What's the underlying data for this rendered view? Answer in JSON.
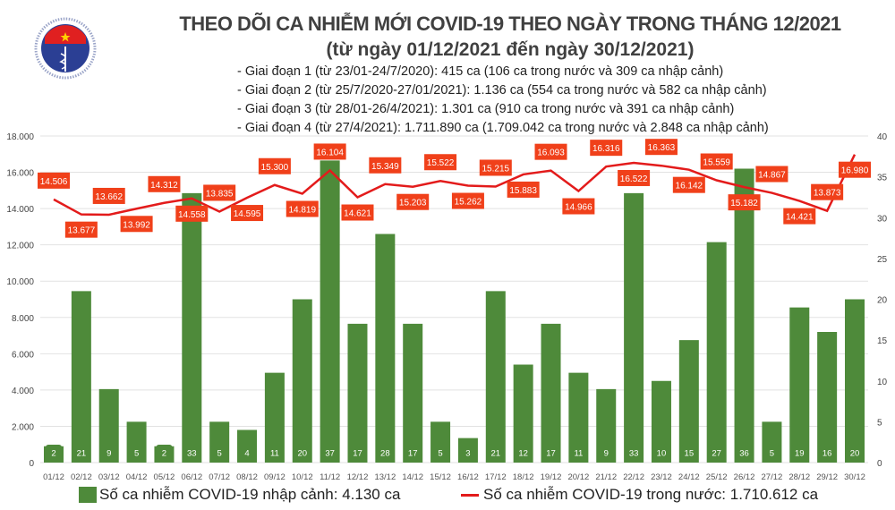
{
  "header": {
    "logo_text": "BỘ Y TẾ MINISTRY OF HEALTH",
    "title": "THEO DÕI CA NHIỄM MỚI COVID-19 THEO NGÀY TRONG THÁNG 12/2021",
    "subtitle": "(từ ngày 01/12/2021 đến ngày 30/12/2021)",
    "phases": [
      "- Giai đoạn 1 (từ 23/01-24/7/2020): 415 ca (106 ca trong nước và 309 ca nhập cảnh)",
      "- Giai đoạn 2 (từ 25/7/2020-27/01/2021): 1.136 ca (554 ca trong nước và 582 ca nhập cảnh)",
      "- Giai đoạn 3 (từ 28/01-26/4/2021): 1.301 ca (910 ca trong nước và 391 ca nhập cảnh)",
      "- Giai đoạn 4 (từ 27/4/2021): 1.711.890 ca (1.709.042 ca trong nước và 2.848 ca nhập cảnh)"
    ]
  },
  "chart_data": {
    "type": "bar+line",
    "categories": [
      "01/12",
      "02/12",
      "03/12",
      "04/12",
      "05/12",
      "06/12",
      "07/12",
      "08/12",
      "09/12",
      "10/12",
      "11/12",
      "12/12",
      "13/12",
      "14/12",
      "15/12",
      "16/12",
      "17/12",
      "18/12",
      "19/12",
      "20/12",
      "21/12",
      "22/12",
      "23/12",
      "24/12",
      "25/12",
      "26/12",
      "27/12",
      "28/12",
      "29/12",
      "30/12"
    ],
    "series": [
      {
        "name": "Số ca nhiễm COVID-19 nhập cảnh: 4.130 ca",
        "type": "bar",
        "axis": "right",
        "color": "#4e8a3a",
        "values": [
          2,
          21,
          9,
          5,
          2,
          33,
          5,
          4,
          11,
          20,
          37,
          17,
          28,
          17,
          5,
          3,
          21,
          12,
          17,
          11,
          9,
          33,
          10,
          15,
          27,
          36,
          5,
          19,
          16,
          20
        ]
      },
      {
        "name": "Số ca nhiễm COVID-19 trong nước: 1.710.612 ca",
        "type": "line",
        "axis": "left",
        "color": "#e31b1b",
        "label_color": "#f0401a",
        "values": [
          14506,
          13677,
          13662,
          13992,
          14312,
          14558,
          13835,
          14595,
          15300,
          14819,
          16104,
          14621,
          15349,
          15203,
          15522,
          15262,
          15215,
          15883,
          16093,
          14966,
          16316,
          16522,
          16363,
          16142,
          15559,
          15182,
          14867,
          14421,
          13873,
          16980
        ]
      }
    ],
    "left_axis": {
      "range": [
        0,
        18000
      ],
      "ticks": [
        "0",
        "2.000",
        "4.000",
        "6.000",
        "8.000",
        "10.000",
        "12.000",
        "14.000",
        "16.000",
        "18.000"
      ]
    },
    "right_axis": {
      "range": [
        0,
        40
      ],
      "ticks": [
        "0",
        "5",
        "10",
        "15",
        "20",
        "25",
        "30",
        "35",
        "40"
      ]
    },
    "grid": true,
    "legend_position": "bottom"
  }
}
